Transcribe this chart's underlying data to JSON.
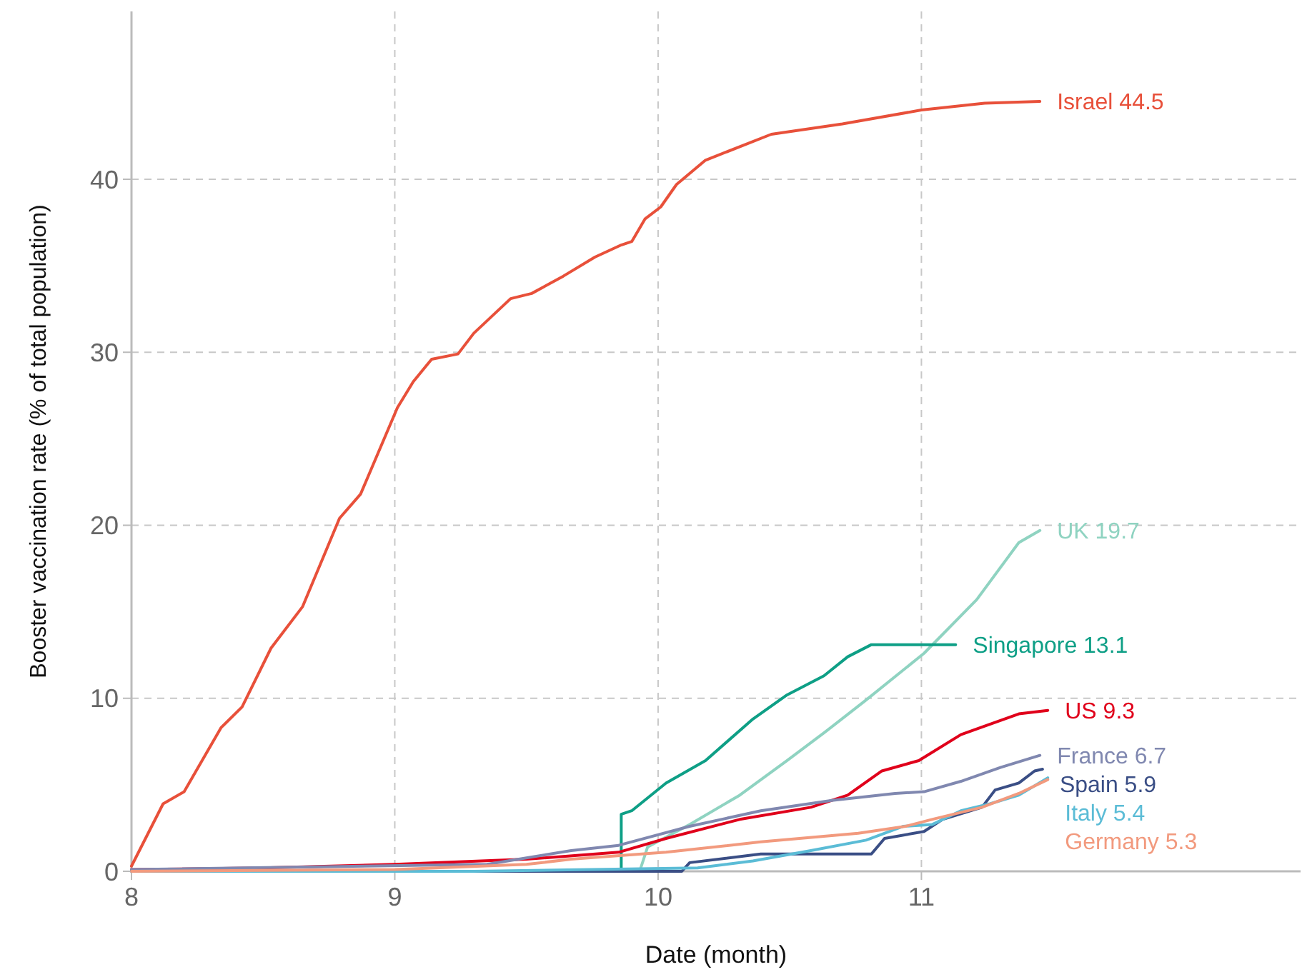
{
  "chart_data": {
    "type": "line",
    "xlabel": "Date (month)",
    "ylabel": "Booster vaccination rate (% of total population)",
    "xlim": [
      8,
      12.44
    ],
    "ylim": [
      0,
      49.7
    ],
    "xticks": [
      8,
      9,
      10,
      11
    ],
    "yticks": [
      0,
      10,
      20,
      30,
      40
    ],
    "grid": true,
    "line_style": "solid",
    "series": [
      {
        "color": "#e8503a",
        "x": [
          8.0,
          8.12,
          8.2,
          8.34,
          8.42,
          8.53,
          8.65,
          8.79,
          8.87,
          9.01,
          9.07,
          9.14,
          9.24,
          9.3,
          9.44,
          9.52,
          9.64,
          9.76,
          9.86,
          9.9,
          9.95,
          10.01,
          10.07,
          10.18,
          10.43,
          10.7,
          11.0,
          11.24,
          11.45
        ],
        "values": [
          0.3,
          3.9,
          4.6,
          8.3,
          9.5,
          12.9,
          15.3,
          20.4,
          21.8,
          26.8,
          28.3,
          29.6,
          29.9,
          31.1,
          33.1,
          33.4,
          34.4,
          35.5,
          36.2,
          36.4,
          37.7,
          38.4,
          39.7,
          41.1,
          42.6,
          43.2,
          44.0,
          44.4,
          44.5
        ],
        "value_labels": [
          null,
          null,
          null,
          null,
          null,
          null,
          null,
          null,
          null,
          null,
          null,
          null,
          null,
          null,
          null,
          null,
          null,
          null,
          null,
          null,
          null,
          null,
          null,
          null,
          null,
          null,
          null,
          null,
          "Israel 44.5"
        ]
      },
      {
        "color": "#8fd3c1",
        "x": [
          9.93,
          9.96,
          10.12,
          10.31,
          10.49,
          10.63,
          10.79,
          11.01,
          11.21,
          11.37,
          11.45
        ],
        "values": [
          0,
          1.4,
          2.7,
          4.4,
          6.4,
          8.0,
          9.9,
          12.6,
          15.7,
          19.0,
          19.7
        ],
        "value_labels": [
          null,
          null,
          null,
          null,
          null,
          null,
          null,
          null,
          null,
          null,
          "UK 19.7"
        ]
      },
      {
        "color": "#0e9f86",
        "x": [
          9.86,
          9.86,
          9.9,
          10.03,
          10.18,
          10.36,
          10.49,
          10.63,
          10.72,
          10.81,
          11.13
        ],
        "values": [
          0,
          3.3,
          3.5,
          5.1,
          6.4,
          8.8,
          10.2,
          11.3,
          12.4,
          13.1,
          13.1
        ],
        "value_labels": [
          null,
          null,
          null,
          null,
          null,
          null,
          null,
          null,
          null,
          null,
          "Singapore 13.1"
        ]
      },
      {
        "color": "#e0001b",
        "x": [
          8.0,
          8.5,
          9.0,
          9.5,
          9.85,
          10.03,
          10.31,
          10.58,
          10.72,
          10.85,
          10.99,
          11.15,
          11.37,
          11.48
        ],
        "values": [
          0.1,
          0.2,
          0.4,
          0.7,
          1.1,
          1.9,
          3.0,
          3.7,
          4.4,
          5.8,
          6.4,
          7.9,
          9.1,
          9.3
        ],
        "value_labels": [
          null,
          null,
          null,
          null,
          null,
          null,
          null,
          null,
          null,
          null,
          null,
          null,
          null,
          "US 9.3"
        ]
      },
      {
        "color": "#8088b0",
        "x": [
          8.0,
          9.35,
          9.67,
          9.85,
          10.12,
          10.39,
          10.66,
          10.9,
          11.01,
          11.15,
          11.3,
          11.45
        ],
        "values": [
          0.1,
          0.4,
          1.2,
          1.5,
          2.6,
          3.5,
          4.1,
          4.5,
          4.6,
          5.2,
          6.0,
          6.7
        ],
        "value_labels": [
          null,
          null,
          null,
          null,
          null,
          null,
          null,
          null,
          null,
          null,
          null,
          "France 6.7"
        ]
      },
      {
        "color": "#3a4e85",
        "x": [
          8.0,
          10.09,
          10.12,
          10.39,
          10.81,
          10.86,
          11.01,
          11.08,
          11.23,
          11.28,
          11.37,
          11.43,
          11.46
        ],
        "values": [
          0,
          0,
          0.5,
          1.0,
          1.0,
          1.9,
          2.3,
          3.0,
          3.7,
          4.7,
          5.1,
          5.8,
          5.9
        ],
        "value_labels": [
          null,
          null,
          null,
          null,
          null,
          null,
          null,
          null,
          null,
          null,
          null,
          null,
          "Spain 5.9"
        ]
      },
      {
        "color": "#5bbcd6",
        "x": [
          8.0,
          9.3,
          10.15,
          10.36,
          10.58,
          10.79,
          10.93,
          11.04,
          11.15,
          11.26,
          11.37,
          11.48
        ],
        "values": [
          0,
          0,
          0.2,
          0.6,
          1.2,
          1.8,
          2.6,
          2.7,
          3.5,
          3.9,
          4.4,
          5.4
        ],
        "value_labels": [
          null,
          null,
          null,
          null,
          null,
          null,
          null,
          null,
          null,
          null,
          null,
          "Italy 5.4"
        ]
      },
      {
        "color": "#f29a7e",
        "x": [
          8.0,
          9.0,
          9.5,
          9.67,
          10.03,
          10.39,
          10.76,
          10.94,
          11.04,
          11.23,
          11.37,
          11.48
        ],
        "values": [
          0,
          0.1,
          0.4,
          0.7,
          1.1,
          1.7,
          2.2,
          2.6,
          3.0,
          3.7,
          4.5,
          5.3
        ],
        "value_labels": [
          null,
          null,
          null,
          null,
          null,
          null,
          null,
          null,
          null,
          null,
          null,
          "Germany 5.3"
        ]
      }
    ]
  }
}
